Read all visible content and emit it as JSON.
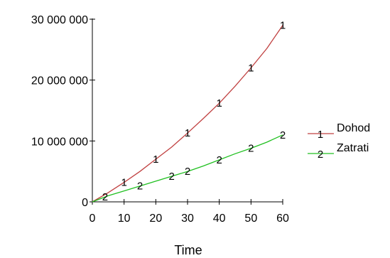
{
  "chart_data": {
    "type": "line",
    "xlabel": "Time",
    "ylabel": "",
    "title": "",
    "xlim": [
      0,
      60
    ],
    "ylim": [
      0,
      30000000
    ],
    "x_ticks": [
      0,
      10,
      20,
      30,
      40,
      50,
      60
    ],
    "x_tick_labels": [
      "0",
      "10",
      "20",
      "30",
      "40",
      "50",
      "60"
    ],
    "y_ticks": [
      0,
      10000000,
      20000000,
      30000000
    ],
    "y_tick_labels": [
      "0",
      "10 000 000",
      "20 000 000",
      "30 000 000"
    ],
    "grid": false,
    "legend_position": "right",
    "series": [
      {
        "name": "Dohod",
        "marker": "1",
        "color": "#c04040",
        "x": [
          0,
          5,
          10,
          15,
          20,
          25,
          30,
          35,
          40,
          45,
          50,
          55,
          60
        ],
        "values": [
          0,
          1500000,
          3200000,
          5000000,
          7000000,
          9000000,
          11300000,
          13700000,
          16200000,
          19000000,
          22000000,
          25200000,
          29000000
        ],
        "marker_x": [
          10,
          20,
          30,
          40,
          50,
          60
        ],
        "marker_values": [
          3200000,
          7000000,
          11300000,
          16200000,
          22000000,
          29000000
        ]
      },
      {
        "name": "Zatrati",
        "marker": "2",
        "color": "#20c020",
        "x": [
          0,
          5,
          10,
          15,
          20,
          25,
          30,
          35,
          40,
          45,
          50,
          55,
          60
        ],
        "values": [
          0,
          1000000,
          1800000,
          2600000,
          3400000,
          4200000,
          5000000,
          5900000,
          6900000,
          7900000,
          8800000,
          9800000,
          11000000
        ],
        "marker_x": [
          4,
          15,
          25,
          30,
          40,
          50,
          60
        ],
        "marker_values": [
          800000,
          2600000,
          4200000,
          5000000,
          6900000,
          8800000,
          11000000
        ]
      }
    ]
  }
}
